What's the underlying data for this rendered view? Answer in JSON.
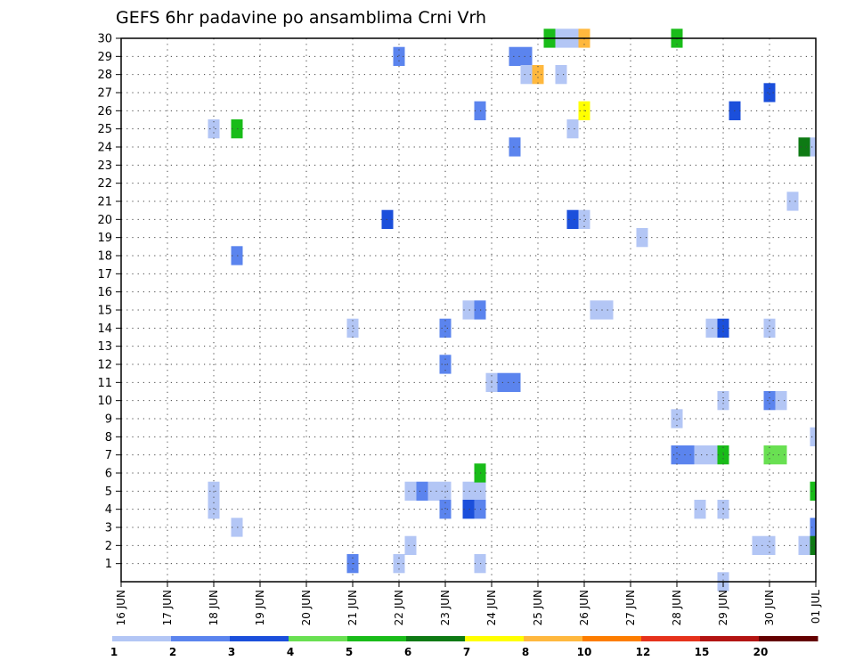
{
  "chart_data": {
    "type": "heatmap",
    "title": "GEFS 6hr padavine po ansamblima Crni Vrh",
    "x_tick_labels": [
      "16 JUN",
      "17 JUN",
      "18 JUN",
      "19 JUN",
      "20 JUN",
      "21 JUN",
      "22 JUN",
      "23 JUN",
      "24 JUN",
      "25 JUN",
      "26 JUN",
      "27 JUN",
      "28 JUN",
      "29 JUN",
      "30 JUN",
      "01 JUL"
    ],
    "y_tick_labels": [
      "1",
      "2",
      "3",
      "4",
      "5",
      "6",
      "7",
      "8",
      "9",
      "10",
      "11",
      "12",
      "13",
      "14",
      "15",
      "16",
      "17",
      "18",
      "19",
      "20",
      "21",
      "22",
      "23",
      "24",
      "25",
      "26",
      "27",
      "28",
      "29",
      "30"
    ],
    "xlim": [
      0,
      15
    ],
    "ylim": [
      0,
      30
    ],
    "grid": true,
    "legend": {
      "placement": "bottom",
      "colors": [
        "#b3c6f5",
        "#5b84ee",
        "#1b4fdb",
        "#69e052",
        "#19bc19",
        "#0e7a14",
        "#ffff00",
        "#ffb83e",
        "#fd7d00",
        "#e6321c",
        "#b31412",
        "#640000"
      ],
      "labels": [
        "1",
        "2",
        "3",
        "4",
        "5",
        "6",
        "7",
        "8",
        "10",
        "12",
        "15",
        "20"
      ]
    },
    "cells": [
      {
        "x": 1.875,
        "y": 25,
        "w": 0.25,
        "c": 0
      },
      {
        "x": 2.375,
        "y": 25,
        "w": 0.25,
        "c": 4
      },
      {
        "x": 1.875,
        "y": 5,
        "w": 0.25,
        "c": 0
      },
      {
        "x": 1.875,
        "y": 4,
        "w": 0.25,
        "c": 0
      },
      {
        "x": 2.375,
        "y": 3,
        "w": 0.25,
        "c": 0
      },
      {
        "x": 2.375,
        "y": 18,
        "w": 0.25,
        "c": 1
      },
      {
        "x": 4.875,
        "y": 14,
        "w": 0.25,
        "c": 0
      },
      {
        "x": 4.875,
        "y": 1,
        "w": 0.25,
        "c": 1
      },
      {
        "x": 5.625,
        "y": 20,
        "w": 0.25,
        "c": 2
      },
      {
        "x": 5.875,
        "y": 29,
        "w": 0.25,
        "c": 1
      },
      {
        "x": 5.875,
        "y": 1,
        "w": 0.25,
        "c": 0
      },
      {
        "x": 6.125,
        "y": 2,
        "w": 0.25,
        "c": 0
      },
      {
        "x": 6.125,
        "y": 5,
        "w": 0.25,
        "c": 0
      },
      {
        "x": 6.375,
        "y": 5,
        "w": 0.25,
        "c": 1
      },
      {
        "x": 6.625,
        "y": 5,
        "w": 0.5,
        "c": 0
      },
      {
        "x": 6.875,
        "y": 4,
        "w": 0.25,
        "c": 1
      },
      {
        "x": 6.875,
        "y": 14,
        "w": 0.25,
        "c": 1
      },
      {
        "x": 6.875,
        "y": 12,
        "w": 0.25,
        "c": 1
      },
      {
        "x": 7.375,
        "y": 15,
        "w": 0.25,
        "c": 0
      },
      {
        "x": 7.625,
        "y": 15,
        "w": 0.25,
        "c": 1
      },
      {
        "x": 7.375,
        "y": 5,
        "w": 0.5,
        "c": 0
      },
      {
        "x": 7.375,
        "y": 4,
        "w": 0.25,
        "c": 2
      },
      {
        "x": 7.625,
        "y": 4,
        "w": 0.25,
        "c": 1
      },
      {
        "x": 7.625,
        "y": 6,
        "w": 0.25,
        "c": 4
      },
      {
        "x": 7.625,
        "y": 1,
        "w": 0.25,
        "c": 0
      },
      {
        "x": 7.625,
        "y": 26,
        "w": 0.25,
        "c": 1
      },
      {
        "x": 7.875,
        "y": 11,
        "w": 0.25,
        "c": 0
      },
      {
        "x": 8.125,
        "y": 11,
        "w": 0.5,
        "c": 1
      },
      {
        "x": 8.375,
        "y": 24,
        "w": 0.25,
        "c": 1
      },
      {
        "x": 8.375,
        "y": 29,
        "w": 0.5,
        "c": 1
      },
      {
        "x": 8.625,
        "y": 28,
        "w": 0.25,
        "c": 0
      },
      {
        "x": 8.875,
        "y": 28,
        "w": 0.25,
        "c": 7
      },
      {
        "x": 9.125,
        "y": 30,
        "w": 0.25,
        "c": 4
      },
      {
        "x": 9.375,
        "y": 30,
        "w": 0.5,
        "c": 0
      },
      {
        "x": 9.875,
        "y": 30,
        "w": 0.25,
        "c": 7
      },
      {
        "x": 9.375,
        "y": 28,
        "w": 0.25,
        "c": 0
      },
      {
        "x": 9.625,
        "y": 25,
        "w": 0.25,
        "c": 0
      },
      {
        "x": 9.875,
        "y": 26,
        "w": 0.25,
        "c": 6
      },
      {
        "x": 9.625,
        "y": 20,
        "w": 0.25,
        "c": 2
      },
      {
        "x": 9.875,
        "y": 20,
        "w": 0.25,
        "c": 0
      },
      {
        "x": 10.125,
        "y": 15,
        "w": 0.5,
        "c": 0
      },
      {
        "x": 11.125,
        "y": 19,
        "w": 0.25,
        "c": 0
      },
      {
        "x": 11.875,
        "y": 30,
        "w": 0.25,
        "c": 4
      },
      {
        "x": 11.875,
        "y": 9,
        "w": 0.25,
        "c": 0
      },
      {
        "x": 11.875,
        "y": 7,
        "w": 0.5,
        "c": 1
      },
      {
        "x": 12.375,
        "y": 7,
        "w": 0.5,
        "c": 0
      },
      {
        "x": 12.875,
        "y": 7,
        "w": 0.25,
        "c": 4
      },
      {
        "x": 12.375,
        "y": 4,
        "w": 0.25,
        "c": 0
      },
      {
        "x": 12.625,
        "y": 14,
        "w": 0.25,
        "c": 0
      },
      {
        "x": 12.875,
        "y": 14,
        "w": 0.25,
        "c": 2
      },
      {
        "x": 12.875,
        "y": 10,
        "w": 0.25,
        "c": 0
      },
      {
        "x": 12.875,
        "y": 4,
        "w": 0.25,
        "c": 0
      },
      {
        "x": 12.875,
        "y": 0,
        "w": 0.25,
        "c": 0
      },
      {
        "x": 13.125,
        "y": 26,
        "w": 0.25,
        "c": 2
      },
      {
        "x": 13.625,
        "y": 2,
        "w": 0.5,
        "c": 0
      },
      {
        "x": 13.875,
        "y": 7,
        "w": 0.5,
        "c": 3
      },
      {
        "x": 13.875,
        "y": 10,
        "w": 0.25,
        "c": 1
      },
      {
        "x": 14.125,
        "y": 10,
        "w": 0.25,
        "c": 0
      },
      {
        "x": 13.875,
        "y": 14,
        "w": 0.25,
        "c": 0
      },
      {
        "x": 13.875,
        "y": 27,
        "w": 0.25,
        "c": 2
      },
      {
        "x": 14.375,
        "y": 21,
        "w": 0.25,
        "c": 0
      },
      {
        "x": 14.625,
        "y": 24,
        "w": 0.25,
        "c": 5
      },
      {
        "x": 14.875,
        "y": 24,
        "w": 0.125,
        "c": 0
      },
      {
        "x": 14.875,
        "y": 8,
        "w": 0.125,
        "c": 0
      },
      {
        "x": 14.875,
        "y": 5,
        "w": 0.125,
        "c": 4
      },
      {
        "x": 14.875,
        "y": 3,
        "w": 0.125,
        "c": 1
      },
      {
        "x": 14.625,
        "y": 2,
        "w": 0.25,
        "c": 0
      },
      {
        "x": 14.875,
        "y": 2,
        "w": 0.125,
        "c": 5
      }
    ]
  }
}
